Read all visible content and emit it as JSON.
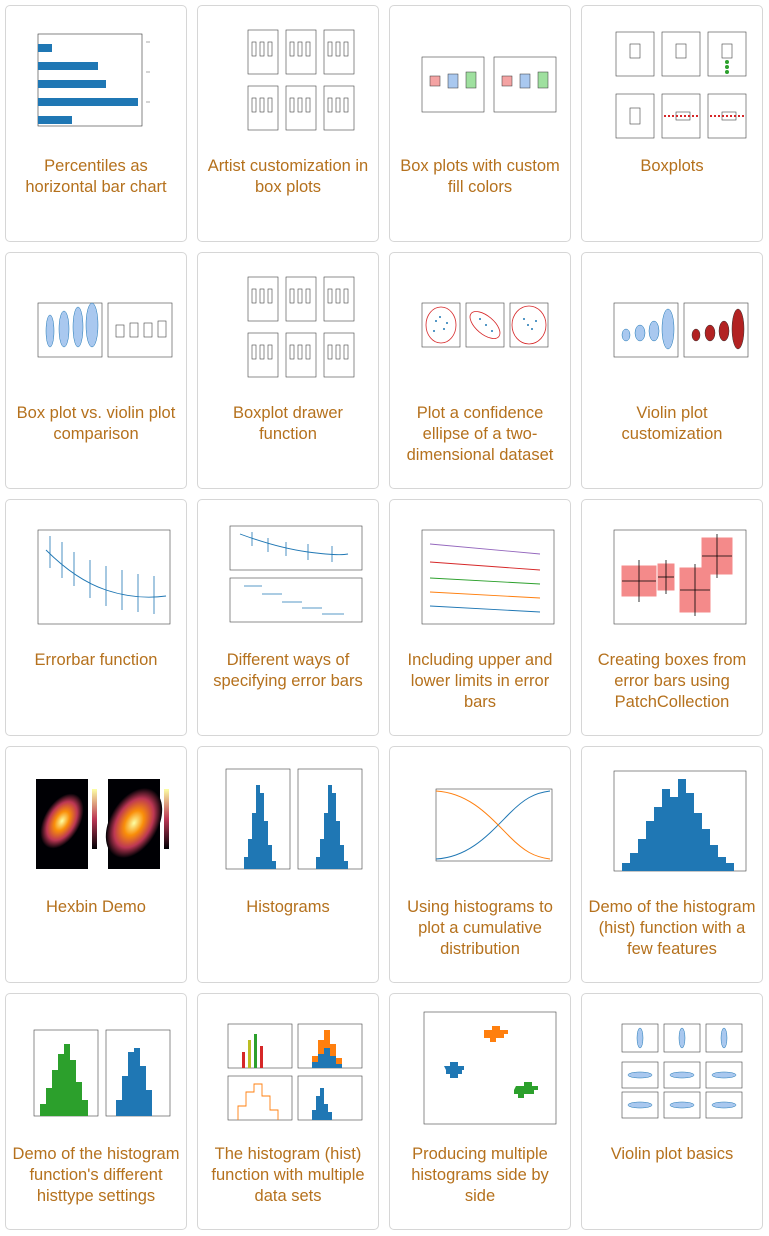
{
  "colors": {
    "title": "#b5711d",
    "border": "#d6d6d6",
    "accent": "#1f77b4"
  },
  "gallery": [
    {
      "title": "Percentiles as horizontal bar chart",
      "icon": "horizontal-bar-chart-thumbnail"
    },
    {
      "title": "Artist customization in box plots",
      "icon": "box-plot-grid-thumbnail"
    },
    {
      "title": "Box plots with custom fill colors",
      "icon": "colored-box-plot-thumbnail"
    },
    {
      "title": "Boxplots",
      "icon": "boxplots-thumbnail"
    },
    {
      "title": "Box plot vs. violin plot comparison",
      "icon": "violin-vs-box-thumbnail"
    },
    {
      "title": "Boxplot drawer function",
      "icon": "box-plot-grid-thumbnail"
    },
    {
      "title": "Plot a confidence ellipse of a two-dimensional dataset",
      "icon": "scatter-ellipse-thumbnail"
    },
    {
      "title": "Violin plot customization",
      "icon": "violin-thumbnail"
    },
    {
      "title": "Errorbar function",
      "icon": "errorbar-thumbnail"
    },
    {
      "title": "Different ways of specifying error bars",
      "icon": "errorbar-variants-thumbnail"
    },
    {
      "title": "Including upper and lower limits in error bars",
      "icon": "errorbar-limits-thumbnail"
    },
    {
      "title": "Creating boxes from error bars using PatchCollection",
      "icon": "error-boxes-thumbnail"
    },
    {
      "title": "Hexbin Demo",
      "icon": "hexbin-thumbnail"
    },
    {
      "title": "Histograms",
      "icon": "histogram-pair-thumbnail"
    },
    {
      "title": "Using histograms to plot a cumulative distribution",
      "icon": "cumulative-hist-thumbnail"
    },
    {
      "title": "Demo of the histogram (hist) function with a few features",
      "icon": "histogram-thumbnail"
    },
    {
      "title": "Demo of the histogram function's different histtype settings",
      "icon": "histtype-thumbnail"
    },
    {
      "title": "The histogram (hist) function with multiple data sets",
      "icon": "multi-hist-thumbnail"
    },
    {
      "title": "Producing multiple histograms side by side",
      "icon": "side-by-side-hist-thumbnail"
    },
    {
      "title": "Violin plot basics",
      "icon": "violin-basics-thumbnail"
    }
  ]
}
